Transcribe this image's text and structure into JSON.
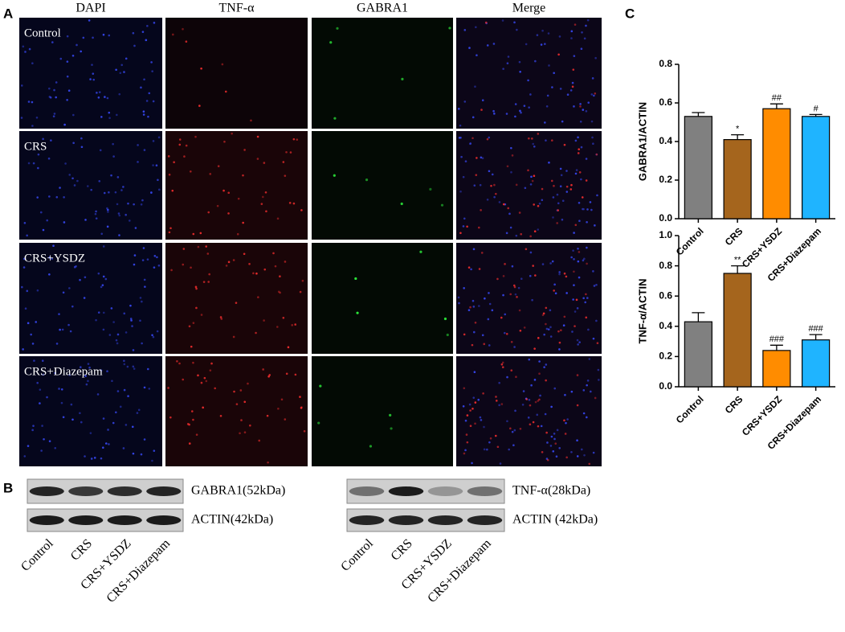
{
  "figure": {
    "panel_labels": [
      "A",
      "B",
      "C"
    ],
    "microscopy": {
      "columns": [
        "DAPI",
        "TNF-α",
        "GABRA1",
        "Merge"
      ],
      "rows": [
        "Control",
        "CRS",
        "CRS+YSDZ",
        "CRS+Diazepam"
      ]
    },
    "blots": [
      {
        "bands": [
          "GABRA1(52kDa)",
          "ACTIN(42kDa)"
        ],
        "lanes": [
          "Control",
          "CRS",
          "CRS+YSDZ",
          "CRS+Diazepam"
        ]
      },
      {
        "bands": [
          "TNF-α(28kDa)",
          "ACTIN (42kDa)"
        ],
        "lanes": [
          "Control",
          "CRS",
          "CRS+YSDZ",
          "CRS+Diazepam"
        ]
      }
    ]
  },
  "chart_data": [
    {
      "type": "bar",
      "y_label": "GABRA1/ACTIN",
      "categories": [
        "Control",
        "CRS",
        "CRS+YSDZ",
        "CRS+Diazepam"
      ],
      "values": [
        0.53,
        0.41,
        0.57,
        0.53
      ],
      "errors": [
        0.02,
        0.025,
        0.025,
        0.01
      ],
      "annotations": [
        null,
        "*",
        "##",
        "#"
      ],
      "colors": [
        "#808080",
        "#a5651d",
        "#ff8c00",
        "#1fb4ff"
      ],
      "ylim": [
        0,
        0.8
      ],
      "yticks": [
        {
          "value": 0,
          "label": "0.0"
        },
        0.2,
        0.4,
        0.6,
        0.8
      ]
    },
    {
      "type": "bar",
      "y_label": "TNF-α/ACTIN",
      "categories": [
        "Control",
        "CRS",
        "CRS+YSDZ",
        "CRS+Diazepam"
      ],
      "values": [
        0.43,
        0.75,
        0.24,
        0.31
      ],
      "errors": [
        0.06,
        0.05,
        0.035,
        0.035
      ],
      "annotations": [
        null,
        "**",
        "###",
        "###"
      ],
      "colors": [
        "#808080",
        "#a5651d",
        "#ff8c00",
        "#1fb4ff"
      ],
      "ylim": [
        0,
        1.0
      ],
      "yticks": [
        {
          "value": 0,
          "label": "0.0"
        },
        0.2,
        0.4,
        0.6,
        0.8,
        {
          "value": 1.0,
          "label": "1.0"
        }
      ]
    }
  ]
}
